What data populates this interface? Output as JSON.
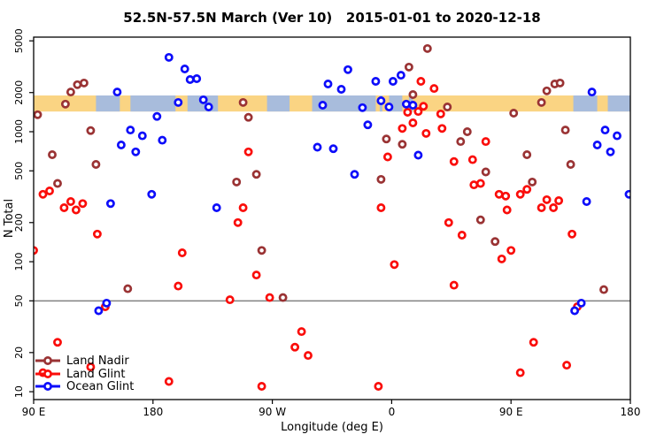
{
  "title": "52.5N-57.5N March (Ver 10)   2015-01-01 to 2020-12-18",
  "chart_data": {
    "type": "scatter",
    "title": "52.5N-57.5N March (Ver 10)   2015-01-01 to 2020-12-18",
    "xlabel": "Longitude (deg E)",
    "ylabel": "N Total",
    "x_axis": {
      "min": 90,
      "max": 540,
      "ticks": [
        {
          "lon": 90,
          "label": "90 E"
        },
        {
          "lon": 180,
          "label": "180"
        },
        {
          "lon": 270,
          "label": "90 W"
        },
        {
          "lon": 360,
          "label": "0"
        },
        {
          "lon": 450,
          "label": "90 E"
        },
        {
          "lon": 540,
          "label": "180"
        }
      ],
      "note": "longitude axis spans 450 deg; data from 90E-180 repeats at 450-540"
    },
    "y_axis": {
      "scale": "log",
      "min": 8.7,
      "max": 5340,
      "ticks": [
        "5000",
        "2000",
        "1000",
        "500",
        "200",
        "100",
        "50",
        "20",
        "10"
      ]
    },
    "reference_line": {
      "n": 50,
      "color": "#808080"
    },
    "map_band": {
      "n_min": 1430,
      "n_max": 1900,
      "land_color": "#FAD483",
      "ocean_color": "#A8BCDC",
      "ocean_segments": [
        [
          137,
          155
        ],
        [
          163,
          197
        ],
        [
          206,
          229
        ],
        [
          266,
          283
        ],
        [
          300,
          348
        ],
        [
          351,
          353
        ],
        [
          358,
          368
        ],
        [
          373,
          376
        ],
        [
          497,
          515
        ],
        [
          523,
          540
        ]
      ]
    },
    "legend": {
      "position": "bottom-left"
    },
    "series": [
      {
        "name": "Land Nadir",
        "color": "#9A3334",
        "points": [
          [
            123,
            2300
          ],
          [
            128,
            2370
          ],
          [
            118,
            2020
          ],
          [
            114,
            1630
          ],
          [
            93,
            1350
          ],
          [
            133,
            1020
          ],
          [
            104,
            665
          ],
          [
            137,
            560
          ],
          [
            108,
            400
          ],
          [
            161,
            62
          ],
          [
            248,
            1680
          ],
          [
            252,
            1290
          ],
          [
            258,
            470
          ],
          [
            243,
            410
          ],
          [
            262,
            122
          ],
          [
            278,
            53
          ],
          [
            356,
            880
          ],
          [
            368,
            800
          ],
          [
            352,
            430
          ],
          [
            376,
            1930
          ],
          [
            373,
            3140
          ],
          [
            387,
            4360
          ],
          [
            402,
            1550
          ],
          [
            417,
            1000
          ],
          [
            412,
            840
          ],
          [
            431,
            490
          ],
          [
            427,
            210
          ],
          [
            438,
            143
          ],
          [
            452,
            1390
          ],
          [
            462,
            665
          ],
          [
            466,
            410
          ],
          [
            473,
            1680
          ],
          [
            477,
            2060
          ],
          [
            483,
            2330
          ],
          [
            487,
            2370
          ],
          [
            491,
            1030
          ],
          [
            495,
            560
          ],
          [
            520,
            61
          ]
        ]
      },
      {
        "name": "Land Glint",
        "color": "#FA0D0A",
        "points": [
          [
            102,
            350
          ],
          [
            97,
            330
          ],
          [
            118,
            290
          ],
          [
            113,
            260
          ],
          [
            127,
            280
          ],
          [
            122,
            250
          ],
          [
            90,
            122
          ],
          [
            108,
            24
          ],
          [
            133,
            15.5
          ],
          [
            97,
            14
          ],
          [
            138,
            163
          ],
          [
            192,
            12
          ],
          [
            144,
            45
          ],
          [
            199,
            65
          ],
          [
            202,
            117
          ],
          [
            238,
            51
          ],
          [
            244,
            200
          ],
          [
            248,
            260
          ],
          [
            252,
            700
          ],
          [
            258,
            79
          ],
          [
            262,
            11
          ],
          [
            268,
            53
          ],
          [
            287,
            22
          ],
          [
            292,
            29
          ],
          [
            297,
            19
          ],
          [
            350,
            11
          ],
          [
            352,
            260
          ],
          [
            357,
            640
          ],
          [
            362,
            95
          ],
          [
            368,
            1060
          ],
          [
            372,
            1410
          ],
          [
            376,
            1170
          ],
          [
            380,
            1430
          ],
          [
            382,
            2440
          ],
          [
            384,
            1570
          ],
          [
            386,
            970
          ],
          [
            392,
            2150
          ],
          [
            397,
            1370
          ],
          [
            398,
            1060
          ],
          [
            403,
            200
          ],
          [
            407,
            590
          ],
          [
            407,
            66
          ],
          [
            413,
            160
          ],
          [
            421,
            610
          ],
          [
            422,
            390
          ],
          [
            427,
            400
          ],
          [
            431,
            840
          ],
          [
            441,
            330
          ],
          [
            446,
            320
          ],
          [
            447,
            250
          ],
          [
            443,
            105
          ],
          [
            450,
            122
          ],
          [
            457,
            330
          ],
          [
            462,
            360
          ],
          [
            457,
            14
          ],
          [
            467,
            24
          ],
          [
            473,
            260
          ],
          [
            477,
            300
          ],
          [
            482,
            260
          ],
          [
            486,
            295
          ],
          [
            492,
            16
          ],
          [
            496,
            163
          ],
          [
            500,
            45
          ]
        ]
      },
      {
        "name": "Ocean Glint",
        "color": "#0D0DFA",
        "points": [
          [
            192,
            3730
          ],
          [
            204,
            3040
          ],
          [
            208,
            2520
          ],
          [
            213,
            2560
          ],
          [
            153,
            2020
          ],
          [
            199,
            1680
          ],
          [
            218,
            1760
          ],
          [
            222,
            1550
          ],
          [
            183,
            1310
          ],
          [
            163,
            1030
          ],
          [
            172,
            930
          ],
          [
            156,
            790
          ],
          [
            187,
            860
          ],
          [
            167,
            700
          ],
          [
            179,
            330
          ],
          [
            148,
            280
          ],
          [
            228,
            260
          ],
          [
            145,
            48
          ],
          [
            139,
            42
          ],
          [
            327,
            3000
          ],
          [
            312,
            2330
          ],
          [
            322,
            2120
          ],
          [
            308,
            1600
          ],
          [
            338,
            1530
          ],
          [
            348,
            2440
          ],
          [
            361,
            2440
          ],
          [
            367,
            2720
          ],
          [
            352,
            1730
          ],
          [
            358,
            1550
          ],
          [
            371,
            1630
          ],
          [
            376,
            1600
          ],
          [
            304,
            760
          ],
          [
            316,
            740
          ],
          [
            332,
            470
          ],
          [
            342,
            1130
          ],
          [
            380,
            660
          ],
          [
            507,
            290
          ],
          [
            511,
            2020
          ],
          [
            521,
            1030
          ],
          [
            530,
            930
          ],
          [
            515,
            790
          ],
          [
            525,
            700
          ],
          [
            539,
            330
          ],
          [
            503,
            48
          ],
          [
            498,
            42
          ]
        ]
      }
    ]
  }
}
